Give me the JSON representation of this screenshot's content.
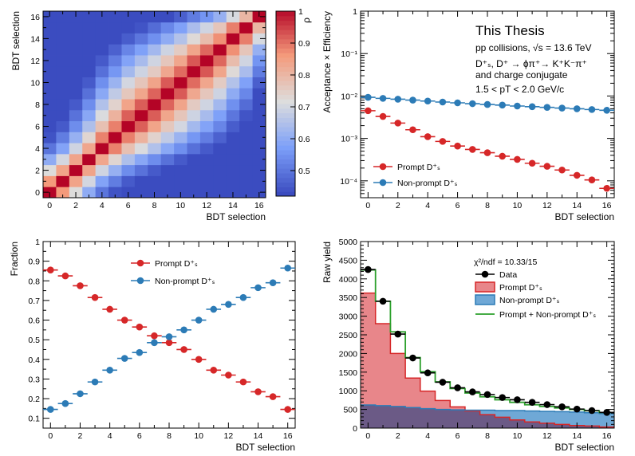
{
  "colors": {
    "prompt": "#d62728",
    "prompt_fill": "#e8868a",
    "nonprompt": "#2c7bb6",
    "nonprompt_fill": "#6fa8d6",
    "fit": "#2ca02c",
    "data": "#000000",
    "overlap": "#6b5a86"
  },
  "chart_data": [
    {
      "id": "correlation",
      "type": "heatmap",
      "xlabel": "BDT selection",
      "ylabel": "BDT selection",
      "xlim": [
        -0.5,
        16.5
      ],
      "ylim": [
        -0.5,
        16.5
      ],
      "xticks": [
        "0",
        "2",
        "4",
        "6",
        "8",
        "10",
        "12",
        "14",
        "16"
      ],
      "yticks": [
        "0",
        "2",
        "4",
        "6",
        "8",
        "10",
        "12",
        "14",
        "16"
      ],
      "n": 17,
      "matrix_rule": "rho(i,j) = 0.985 ^ (|log(f_i) - log(f_j)| / 0.03) with f_k = efficiency fraction of cut k",
      "colorbar": {
        "label": "ρ",
        "range": [
          0.42,
          1.0
        ],
        "ticks": [
          "0.5",
          "0.6",
          "0.7",
          "0.8",
          "0.9",
          "1"
        ]
      }
    },
    {
      "id": "efficiency",
      "type": "scatter",
      "xlabel": "BDT selection",
      "ylabel": "Acceptance × Efficiency",
      "yscale": "log",
      "xlim": [
        -0.5,
        16.5
      ],
      "ylim": [
        4e-05,
        1
      ],
      "xticks": [
        "0",
        "2",
        "4",
        "6",
        "8",
        "10",
        "12",
        "14",
        "16"
      ],
      "yticks": [
        "10⁻⁴",
        "10⁻³",
        "10⁻²",
        "10⁻¹",
        "1"
      ],
      "legend_position": "bottom-left",
      "header": {
        "title": "This Thesis",
        "line1": "pp collisions, √s = 13.6 TeV",
        "line2": "D⁺ₛ, D⁺ → ϕπ⁺→ K⁺K⁻π⁺",
        "line3": "and charge conjugate",
        "line4": "1.5 < pT < 2.0 GeV/c"
      },
      "x": [
        0,
        1,
        2,
        3,
        4,
        5,
        6,
        7,
        8,
        9,
        10,
        11,
        12,
        13,
        14,
        15,
        16
      ],
      "series": [
        {
          "name": "Prompt D⁺ₛ",
          "color": "prompt",
          "values": [
            0.0045,
            0.0033,
            0.0023,
            0.0016,
            0.0011,
            0.00085,
            0.00066,
            0.00055,
            0.00046,
            0.00038,
            0.00032,
            0.00026,
            0.00022,
            0.00018,
            0.000135,
            0.000105,
            6.65e-05
          ]
        },
        {
          "name": "Non-prompt D⁺ₛ",
          "color": "nonprompt",
          "values": [
            0.0093,
            0.0088,
            0.0084,
            0.008,
            0.0076,
            0.0072,
            0.0069,
            0.0066,
            0.0063,
            0.0061,
            0.0058,
            0.0056,
            0.0054,
            0.0052,
            0.005,
            0.0048,
            0.0046
          ]
        }
      ]
    },
    {
      "id": "fraction",
      "type": "scatter",
      "xlabel": "BDT selection",
      "ylabel": "Fraction",
      "xlim": [
        -0.5,
        16.5
      ],
      "ylim": [
        0.05,
        1.0
      ],
      "xticks": [
        "0",
        "2",
        "4",
        "6",
        "8",
        "10",
        "12",
        "14",
        "16"
      ],
      "yticks": [
        "0.1",
        "0.2",
        "0.3",
        "0.4",
        "0.5",
        "0.6",
        "0.7",
        "0.8",
        "0.9",
        "1"
      ],
      "legend_position": "top-center",
      "x": [
        0,
        1,
        2,
        3,
        4,
        5,
        6,
        7,
        8,
        9,
        10,
        11,
        12,
        13,
        14,
        15,
        16
      ],
      "series": [
        {
          "name": "Prompt D⁺ₛ",
          "color": "prompt",
          "values": [
            0.855,
            0.825,
            0.775,
            0.715,
            0.655,
            0.6,
            0.565,
            0.52,
            0.485,
            0.45,
            0.4,
            0.345,
            0.32,
            0.285,
            0.235,
            0.21,
            0.145
          ]
        },
        {
          "name": "Non-prompt D⁺ₛ",
          "color": "nonprompt",
          "values": [
            0.145,
            0.175,
            0.225,
            0.285,
            0.345,
            0.405,
            0.435,
            0.485,
            0.515,
            0.55,
            0.6,
            0.655,
            0.68,
            0.715,
            0.765,
            0.79,
            0.865
          ]
        }
      ]
    },
    {
      "id": "rawyield",
      "type": "bar",
      "xlabel": "BDT selection",
      "ylabel": "Raw yield",
      "xlim": [
        -0.5,
        16.5
      ],
      "ylim": [
        0,
        5000
      ],
      "xticks": [
        "0",
        "2",
        "4",
        "6",
        "8",
        "10",
        "12",
        "14",
        "16"
      ],
      "yticks": [
        "0",
        "500",
        "1000",
        "1500",
        "2000",
        "2500",
        "3000",
        "3500",
        "4000",
        "4500",
        "5000"
      ],
      "chi2": "χ²/ndf = 10.33/15",
      "x": [
        0,
        1,
        2,
        3,
        4,
        5,
        6,
        7,
        8,
        9,
        10,
        11,
        12,
        13,
        14,
        15,
        16
      ],
      "data": {
        "name": "Data",
        "values": [
          4250,
          3400,
          2520,
          1880,
          1480,
          1230,
          1080,
          970,
          900,
          820,
          760,
          690,
          630,
          570,
          510,
          470,
          420
        ]
      },
      "prompt": {
        "name": "Prompt D⁺ₛ",
        "values": [
          3620,
          2800,
          2000,
          1340,
          990,
          740,
          570,
          460,
          360,
          290,
          220,
          165,
          130,
          100,
          70,
          55,
          30
        ]
      },
      "nonprompt": {
        "name": "Non-prompt D⁺ₛ",
        "values": [
          620,
          600,
          580,
          550,
          520,
          500,
          490,
          480,
          480,
          470,
          470,
          460,
          450,
          440,
          430,
          410,
          390
        ]
      },
      "fit": {
        "name": "Prompt + Non-prompt D⁺ₛ"
      }
    }
  ]
}
